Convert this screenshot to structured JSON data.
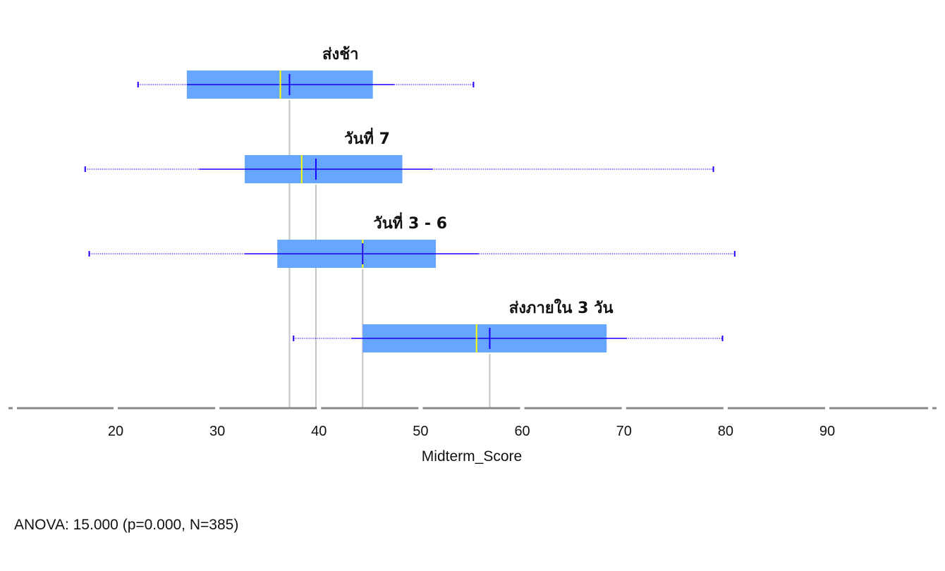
{
  "chart_data": {
    "type": "boxplot",
    "orientation": "horizontal",
    "xlabel": "Midterm_Score",
    "xlim": [
      10,
      100
    ],
    "xticks": [
      20,
      30,
      40,
      50,
      60,
      70,
      80,
      90
    ],
    "grid": false,
    "groups": [
      {
        "name": "ส่งช้า",
        "min": 22.2,
        "whisker_low": 27.0,
        "q1": 27.0,
        "median": 36.2,
        "mean": 37.1,
        "q3": 45.3,
        "whisker_high": 47.4,
        "max": 55.2
      },
      {
        "name": "วันที่ 7",
        "min": 17.0,
        "whisker_low": 28.2,
        "q1": 32.7,
        "median": 38.3,
        "mean": 39.7,
        "q3": 48.2,
        "whisker_high": 51.2,
        "max": 78.8
      },
      {
        "name": "วันที่ 3 - 6",
        "min": 17.4,
        "whisker_low": 32.7,
        "q1": 35.9,
        "median": 44.3,
        "mean": 44.3,
        "q3": 51.5,
        "whisker_high": 55.7,
        "max": 80.9
      },
      {
        "name": "ส่งภายใน 3 วัน",
        "min": 37.5,
        "whisker_low": 43.2,
        "q1": 44.3,
        "median": 55.5,
        "mean": 56.8,
        "q3": 68.3,
        "whisker_high": 70.3,
        "max": 79.7
      }
    ],
    "colors": {
      "box": "#66a6ff",
      "median": "#ffff00",
      "mean": "#1a00ff",
      "whisker": "#1a00ff",
      "guide": "#c4c4c4",
      "axis": "#888888"
    }
  },
  "footer": {
    "text": "ANOVA: 15.000 (p=0.000, N=385)"
  }
}
